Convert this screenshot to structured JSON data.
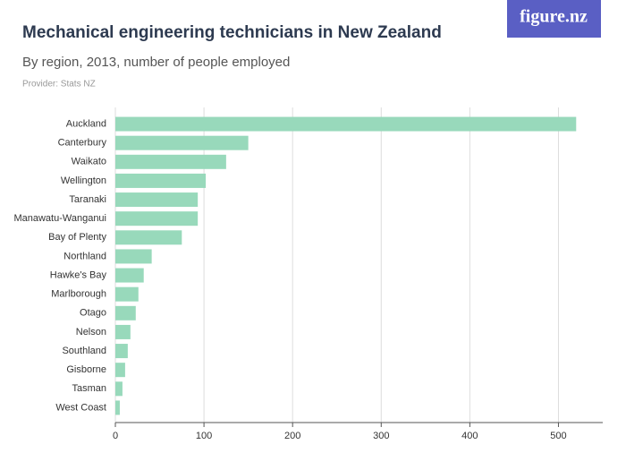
{
  "logo": "figure.nz",
  "chart_data": {
    "type": "hbar",
    "title": "Mechanical engineering technicians in New Zealand",
    "subtitle": "By region, 2013, number of people employed",
    "provider": "Provider: Stats NZ",
    "categories": [
      "Auckland",
      "Canterbury",
      "Waikato",
      "Wellington",
      "Taranaki",
      "Manawatu-Wanganui",
      "Bay of Plenty",
      "Northland",
      "Hawke's Bay",
      "Marlborough",
      "Otago",
      "Nelson",
      "Southland",
      "Gisborne",
      "Tasman",
      "West Coast"
    ],
    "values": [
      520,
      150,
      125,
      102,
      93,
      93,
      75,
      41,
      32,
      26,
      23,
      17,
      14,
      11,
      8,
      5
    ],
    "color": "#98d9bb",
    "xlim": [
      0,
      550
    ],
    "xticks": [
      0,
      100,
      200,
      300,
      400,
      500
    ],
    "grid": true
  }
}
